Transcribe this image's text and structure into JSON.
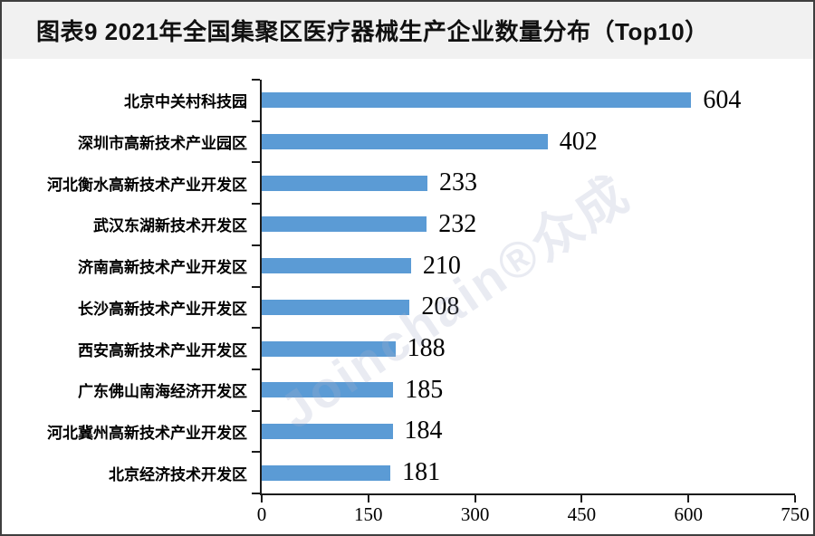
{
  "header": {
    "title": "图表9 2021年全国集聚区医疗器械生产企业数量分布（Top10）"
  },
  "watermark": {
    "text": "Joinchain®众成"
  },
  "chart_data": {
    "type": "bar",
    "orientation": "horizontal",
    "title": "图表9 2021年全国集聚区医疗器械生产企业数量分布（Top10）",
    "categories": [
      "北京中关村科技园",
      "深圳市高新技术产业园区",
      "河北衡水高新技术产业开发区",
      "武汉东湖新技术开发区",
      "济南高新技术产业开发区",
      "长沙高新技术产业开发区",
      "西安高新技术产业开发区",
      "广东佛山南海经济开发区",
      "河北冀州高新技术产业开发区",
      "北京经济技术开发区"
    ],
    "values": [
      604,
      402,
      233,
      232,
      210,
      208,
      188,
      185,
      184,
      181
    ],
    "value_labels": [
      "604",
      "402",
      "233",
      "232",
      "210",
      "208",
      "188",
      "185",
      "184",
      "181"
    ],
    "xlabel": "",
    "ylabel": "",
    "xlim": [
      0,
      750
    ],
    "xticks": [
      0,
      150,
      300,
      450,
      600,
      750
    ],
    "grid": false,
    "legend": "none",
    "bar_color": "#5B9BD5",
    "axis_color": "#1c1c1c"
  }
}
